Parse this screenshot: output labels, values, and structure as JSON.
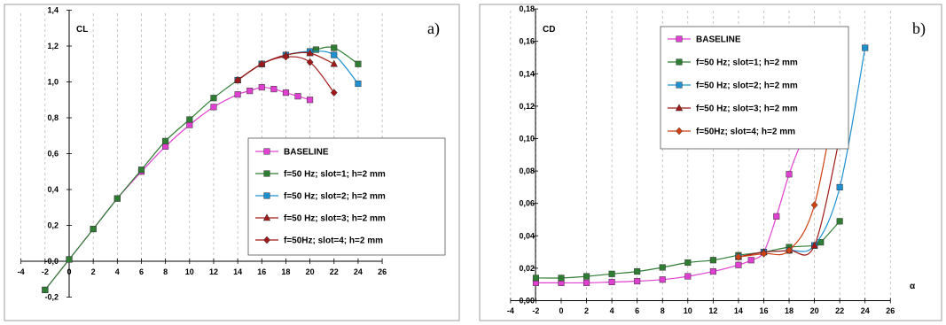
{
  "chart_data": [
    {
      "type": "line",
      "panel_label": "a)",
      "ylabel": "CL",
      "xlabel": "α",
      "xlim": [
        -4,
        26
      ],
      "ylim": [
        -0.2,
        1.4
      ],
      "xticks": [
        "-4",
        "-2",
        "0",
        "2",
        "4",
        "6",
        "8",
        "10",
        "12",
        "14",
        "16",
        "18",
        "20",
        "22",
        "24",
        "26"
      ],
      "yticks": [
        "-0,2",
        "-0,0",
        "0,2",
        "0,4",
        "0,6",
        "0,8",
        "1,0",
        "1,2",
        "1,4"
      ],
      "grid": "vertical-dashed",
      "legend_position": "center-right",
      "series": [
        {
          "name": "BASELINE",
          "color": "#e040d0",
          "marker": "square",
          "points": [
            [
              -2,
              -0.16
            ],
            [
              0,
              0.01
            ],
            [
              2,
              0.18
            ],
            [
              4,
              0.35
            ],
            [
              6,
              0.5
            ],
            [
              8,
              0.64
            ],
            [
              10,
              0.76
            ],
            [
              12,
              0.86
            ],
            [
              14,
              0.93
            ],
            [
              15,
              0.95
            ],
            [
              16,
              0.97
            ],
            [
              17,
              0.96
            ],
            [
              18,
              0.94
            ],
            [
              19,
              0.92
            ],
            [
              20,
              0.9
            ]
          ]
        },
        {
          "name": "f=50 Hz; slot=1; h=2 mm",
          "color": "#2e7d32",
          "marker": "square",
          "points": [
            [
              -2,
              -0.16
            ],
            [
              0,
              0.01
            ],
            [
              2,
              0.18
            ],
            [
              4,
              0.35
            ],
            [
              6,
              0.51
            ],
            [
              8,
              0.67
            ],
            [
              10,
              0.79
            ],
            [
              12,
              0.91
            ],
            [
              14,
              1.01
            ],
            [
              16,
              1.1
            ],
            [
              18,
              1.15
            ],
            [
              20,
              1.17
            ],
            [
              20.5,
              1.18
            ],
            [
              22,
              1.19
            ],
            [
              24,
              1.1
            ]
          ]
        },
        {
          "name": "f=50 Hz; slot=2; h=2 mm",
          "color": "#1e90d0",
          "marker": "square",
          "points": [
            [
              14,
              1.01
            ],
            [
              16,
              1.1
            ],
            [
              18,
              1.15
            ],
            [
              20,
              1.17
            ],
            [
              22,
              1.15
            ],
            [
              24,
              0.99
            ]
          ]
        },
        {
          "name": "f=50 Hz; slot=3; h=2 mm",
          "color": "#a01818",
          "marker": "triangle",
          "points": [
            [
              14,
              1.01
            ],
            [
              16,
              1.1
            ],
            [
              18,
              1.15
            ],
            [
              20,
              1.16
            ],
            [
              22,
              1.1
            ]
          ]
        },
        {
          "name": "f=50Hz; slot=4; h=2 mm",
          "color": "#a01818",
          "marker": "diamond",
          "points": [
            [
              14,
              1.01
            ],
            [
              16,
              1.1
            ],
            [
              18,
              1.14
            ],
            [
              20,
              1.11
            ],
            [
              22,
              0.94
            ]
          ]
        }
      ]
    },
    {
      "type": "line",
      "panel_label": "b)",
      "ylabel": "CD",
      "xlabel": "α",
      "xlim": [
        -4,
        26
      ],
      "ylim": [
        0,
        0.18
      ],
      "xticks": [
        "-4",
        "-2",
        "0",
        "2",
        "4",
        "6",
        "8",
        "10",
        "12",
        "14",
        "16",
        "18",
        "20",
        "22",
        "24",
        "26"
      ],
      "yticks": [
        "0,00",
        "0,02",
        "0,04",
        "0,06",
        "0,08",
        "0,10",
        "0,12",
        "0,14",
        "0,16",
        "0,18"
      ],
      "grid": "vertical-dashed",
      "legend_position": "top-center",
      "series": [
        {
          "name": "BASELINE",
          "color": "#e040d0",
          "marker": "square",
          "points": [
            [
              -2,
              0.011
            ],
            [
              0,
              0.011
            ],
            [
              2,
              0.011
            ],
            [
              4,
              0.0115
            ],
            [
              6,
              0.012
            ],
            [
              8,
              0.013
            ],
            [
              10,
              0.015
            ],
            [
              12,
              0.018
            ],
            [
              14,
              0.022
            ],
            [
              15,
              0.025
            ],
            [
              16,
              0.03
            ],
            [
              17,
              0.052
            ],
            [
              18,
              0.078
            ],
            [
              19,
              0.098
            ],
            [
              20,
              0.112
            ]
          ]
        },
        {
          "name": "f=50 Hz; slot=1; h=2 mm",
          "color": "#2e7d32",
          "marker": "square",
          "points": [
            [
              -2,
              0.014
            ],
            [
              0,
              0.014
            ],
            [
              2,
              0.015
            ],
            [
              4,
              0.0165
            ],
            [
              6,
              0.018
            ],
            [
              8,
              0.0205
            ],
            [
              10,
              0.0235
            ],
            [
              12,
              0.025
            ],
            [
              14,
              0.028
            ],
            [
              16,
              0.03
            ],
            [
              18,
              0.033
            ],
            [
              20,
              0.034
            ],
            [
              20.5,
              0.036
            ],
            [
              22,
              0.049
            ]
          ]
        },
        {
          "name": "f=50 Hz; slot=2; h=2 mm",
          "color": "#1e90d0",
          "marker": "square",
          "points": [
            [
              14,
              0.027
            ],
            [
              16,
              0.03
            ],
            [
              18,
              0.031
            ],
            [
              20,
              0.034
            ],
            [
              22,
              0.07
            ],
            [
              24,
              0.156
            ]
          ]
        },
        {
          "name": "f=50 Hz; slot=3; h=2 mm",
          "color": "#a01818",
          "marker": "triangle",
          "points": [
            [
              14,
              0.027
            ],
            [
              16,
              0.03
            ],
            [
              18,
              0.031
            ],
            [
              20,
              0.034
            ],
            [
              22,
              0.101
            ]
          ]
        },
        {
          "name": "f=50Hz; slot=4; h=2 mm",
          "color": "#d04010",
          "marker": "diamond",
          "points": [
            [
              14,
              0.027
            ],
            [
              16,
              0.029
            ],
            [
              18,
              0.031
            ],
            [
              20,
              0.059
            ],
            [
              22,
              0.139
            ]
          ]
        }
      ]
    }
  ]
}
